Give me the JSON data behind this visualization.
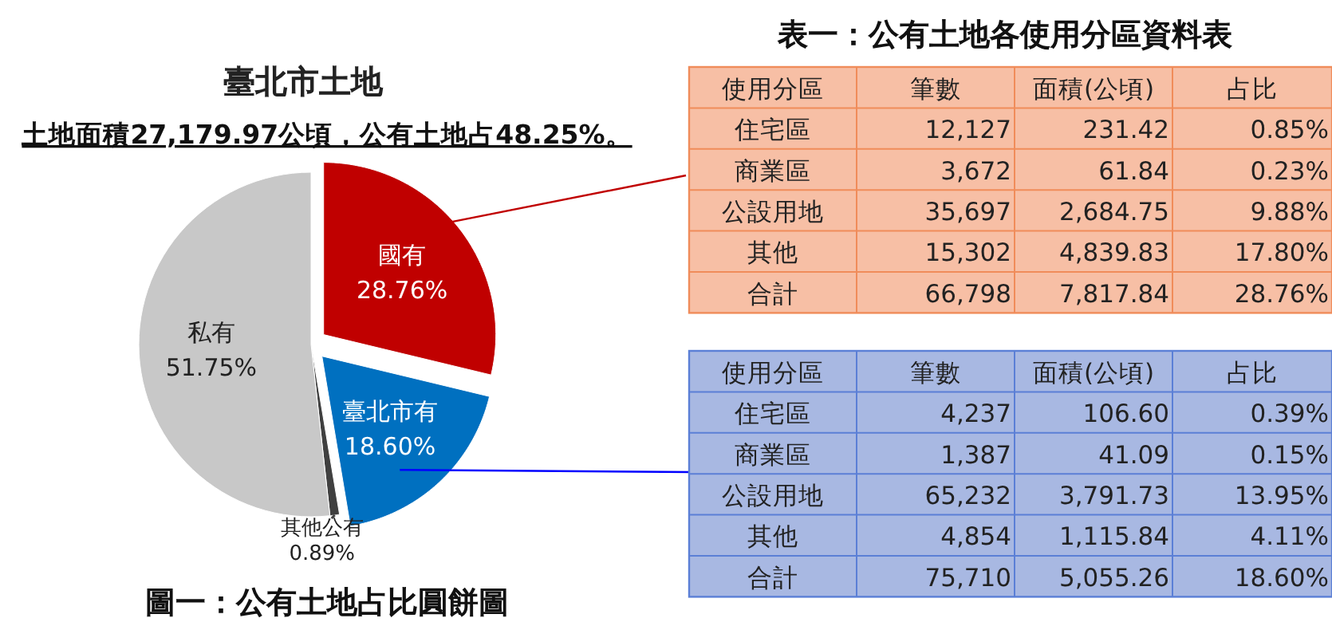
{
  "chart_data": [
    {
      "type": "pie",
      "title": "臺北市土地",
      "subtitle": "土地面積27,179.97公頃，公有土地占48.25%。",
      "categories": [
        "國有",
        "臺北市有",
        "其他公有",
        "私有"
      ],
      "values": [
        28.76,
        18.6,
        0.89,
        51.75
      ],
      "value_labels": [
        "28.76%",
        "18.60%",
        "0.89%",
        "51.75%"
      ],
      "colors": [
        "#c00000",
        "#0070c0",
        "#404040",
        "#c8c8c8"
      ],
      "annotations": [
        "圖一：公有土地占比圓餅圖"
      ]
    },
    {
      "type": "other",
      "title": "表一：公有土地各使用分區資料表",
      "categories": [
        "使用分區",
        "筆數",
        "面積(公頃)",
        "占比"
      ],
      "annotations": [
        "住宅區",
        "12,127",
        "231.42",
        "0.85%",
        "商業區",
        "3,672",
        "61.84",
        "0.23%",
        "公設用地",
        "35,697",
        "2,684.75",
        "9.88%",
        "其他",
        "15,302",
        "4,839.83",
        "17.80%",
        "合計",
        "66,798",
        "7,817.84",
        "28.76%"
      ]
    },
    {
      "type": "other",
      "categories": [
        "使用分區",
        "筆數",
        "面積(公頃)",
        "占比"
      ],
      "annotations": [
        "住宅區",
        "4,237",
        "106.60",
        "0.39%",
        "商業區",
        "1,387",
        "41.09",
        "0.15%",
        "公設用地",
        "65,232",
        "3,791.73",
        "13.95%",
        "其他",
        "4,854",
        "1,115.84",
        "4.11%",
        "合計",
        "75,710",
        "5,055.26",
        "18.60%"
      ]
    }
  ]
}
